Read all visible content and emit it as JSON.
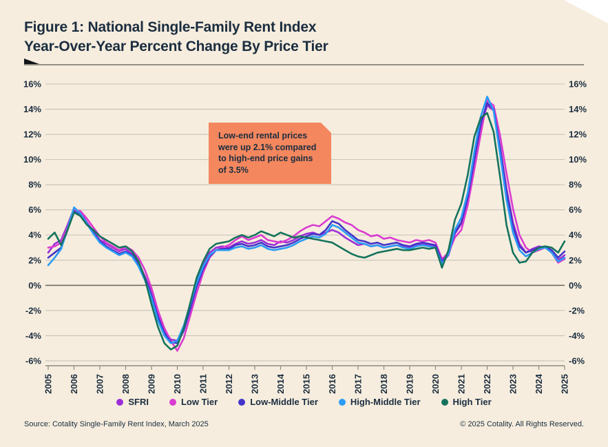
{
  "header": {
    "title_line1": "Figure 1: National Single-Family Rent Index",
    "title_line2": "Year-Over-Year Percent Change By Price Tier"
  },
  "annotation": {
    "text": "Low-end rental prices were up 2.1% compared to high-end price gains of 3.5%"
  },
  "footer": {
    "source": "Source: Cotality Single-Family Rent Index, March 2025",
    "copyright": "© 2025 Cotality. All Rights Reserved."
  },
  "colors": {
    "background": "#f6edde",
    "text_navy": "#1b2d3f",
    "annotation_bg": "#f4875e",
    "gridline": "#c6c2b8",
    "zero_line": "#6f6e66",
    "axis": "#8f8b80"
  },
  "chart_data": {
    "type": "line",
    "title": "National Single-Family Rent Index Year-Over-Year Percent Change By Price Tier",
    "xlabel": "",
    "ylabel": "Year-over-year percent change",
    "y_unit": "%",
    "ylim": [
      -6,
      16
    ],
    "y_ticks": [
      16,
      14,
      12,
      10,
      8,
      6,
      4,
      2,
      0,
      -2,
      -4,
      -6
    ],
    "x_ticks": [
      2005,
      2006,
      2007,
      2008,
      2009,
      2010,
      2011,
      2012,
      2013,
      2014,
      2015,
      2016,
      2017,
      2018,
      2019,
      2020,
      2021,
      2022,
      2023,
      2024,
      2025
    ],
    "x_start": 2005,
    "x_step": 0.25,
    "grid": "horizontal",
    "legend_position": "bottom",
    "series": [
      {
        "name": "SFRI",
        "color": "#9b2fd6",
        "values": [
          2.6,
          3.3,
          3.6,
          4.8,
          6.1,
          5.8,
          5.0,
          4.3,
          3.6,
          3.3,
          3.0,
          2.7,
          2.9,
          2.5,
          1.8,
          0.7,
          -0.5,
          -2.2,
          -3.6,
          -4.3,
          -4.4,
          -3.3,
          -1.6,
          0.3,
          1.6,
          2.6,
          3.0,
          3.1,
          3.0,
          3.3,
          3.5,
          3.3,
          3.4,
          3.6,
          3.3,
          3.2,
          3.5,
          3.4,
          3.6,
          3.9,
          4.1,
          4.2,
          4.0,
          4.2,
          4.4,
          4.2,
          3.8,
          3.5,
          3.2,
          3.3,
          3.1,
          3.2,
          3.0,
          3.1,
          3.2,
          3.1,
          3.0,
          3.2,
          3.3,
          3.2,
          3.1,
          1.8,
          2.4,
          4.1,
          4.9,
          6.8,
          9.8,
          12.6,
          14.3,
          13.9,
          11.0,
          7.7,
          5.0,
          3.3,
          2.6,
          2.9,
          3.1,
          3.0,
          2.7,
          2.0,
          2.4
        ]
      },
      {
        "name": "Low Tier",
        "color": "#da3bd1",
        "values": [
          3.0,
          3.1,
          3.4,
          4.6,
          6.0,
          5.9,
          5.3,
          4.6,
          3.9,
          3.4,
          3.1,
          2.8,
          3.1,
          2.8,
          2.2,
          1.2,
          -0.2,
          -2.0,
          -3.4,
          -4.4,
          -5.2,
          -4.2,
          -2.4,
          -0.6,
          1.0,
          2.2,
          2.8,
          3.0,
          3.2,
          3.6,
          3.9,
          3.6,
          3.8,
          4.0,
          3.6,
          3.5,
          3.4,
          3.6,
          3.9,
          4.3,
          4.6,
          4.8,
          4.7,
          5.1,
          5.5,
          5.3,
          5.0,
          4.8,
          4.4,
          4.2,
          3.9,
          4.0,
          3.7,
          3.8,
          3.6,
          3.5,
          3.4,
          3.6,
          3.5,
          3.6,
          3.4,
          2.1,
          2.6,
          3.8,
          4.4,
          6.4,
          9.2,
          12.0,
          14.7,
          14.3,
          11.9,
          8.9,
          6.1,
          4.0,
          3.0,
          2.6,
          2.8,
          3.0,
          2.6,
          1.8,
          2.1
        ]
      },
      {
        "name": "Low-Middle Tier",
        "color": "#4434c8",
        "values": [
          2.2,
          2.6,
          3.0,
          4.4,
          5.9,
          5.6,
          4.9,
          4.2,
          3.5,
          3.1,
          2.8,
          2.5,
          2.7,
          2.4,
          1.7,
          0.6,
          -0.8,
          -2.5,
          -3.8,
          -4.5,
          -4.6,
          -3.6,
          -1.9,
          -0.1,
          1.3,
          2.3,
          2.8,
          2.9,
          2.9,
          3.2,
          3.3,
          3.1,
          3.2,
          3.4,
          3.1,
          3.0,
          3.1,
          3.2,
          3.4,
          3.7,
          3.9,
          4.1,
          4.0,
          4.4,
          5.1,
          4.9,
          4.4,
          4.0,
          3.6,
          3.5,
          3.3,
          3.4,
          3.2,
          3.3,
          3.4,
          3.2,
          3.1,
          3.3,
          3.4,
          3.3,
          3.2,
          1.9,
          2.5,
          4.2,
          5.0,
          7.0,
          10.0,
          12.8,
          14.5,
          14.0,
          10.9,
          7.4,
          4.7,
          3.1,
          2.6,
          2.8,
          3.0,
          3.1,
          2.8,
          2.2,
          2.7
        ]
      },
      {
        "name": "High-Middle Tier",
        "color": "#2a9cf4",
        "values": [
          1.6,
          2.2,
          2.9,
          4.5,
          6.2,
          5.7,
          4.9,
          4.1,
          3.4,
          3.0,
          2.7,
          2.4,
          2.6,
          2.3,
          1.5,
          0.4,
          -1.0,
          -2.8,
          -4.0,
          -4.6,
          -4.4,
          -3.2,
          -1.5,
          0.2,
          1.5,
          2.4,
          2.8,
          2.8,
          2.8,
          3.0,
          3.1,
          2.9,
          3.0,
          3.2,
          2.9,
          2.8,
          2.9,
          3.0,
          3.2,
          3.5,
          3.7,
          3.9,
          3.8,
          4.1,
          4.8,
          4.6,
          4.2,
          3.8,
          3.4,
          3.3,
          3.1,
          3.2,
          3.0,
          3.1,
          3.2,
          3.0,
          2.9,
          3.1,
          3.2,
          3.1,
          3.0,
          1.7,
          2.5,
          4.4,
          5.4,
          7.4,
          10.6,
          13.4,
          15.0,
          13.9,
          10.4,
          6.8,
          4.2,
          2.8,
          2.3,
          2.6,
          2.9,
          3.0,
          2.6,
          1.9,
          2.2
        ]
      },
      {
        "name": "High Tier",
        "color": "#15735c",
        "values": [
          3.7,
          4.2,
          3.2,
          4.4,
          5.8,
          5.5,
          4.8,
          4.4,
          3.9,
          3.6,
          3.3,
          3.0,
          3.1,
          2.7,
          1.9,
          0.5,
          -1.5,
          -3.3,
          -4.6,
          -5.1,
          -4.8,
          -3.4,
          -1.4,
          0.6,
          1.9,
          2.9,
          3.3,
          3.4,
          3.5,
          3.8,
          4.0,
          3.8,
          4.0,
          4.3,
          4.1,
          3.9,
          4.2,
          4.0,
          3.8,
          3.9,
          3.8,
          3.7,
          3.6,
          3.5,
          3.4,
          3.1,
          2.8,
          2.5,
          2.3,
          2.2,
          2.4,
          2.6,
          2.7,
          2.8,
          2.9,
          2.8,
          2.8,
          2.9,
          3.0,
          2.9,
          3.0,
          1.4,
          2.8,
          5.2,
          6.5,
          8.8,
          11.8,
          13.3,
          13.7,
          12.2,
          8.6,
          4.8,
          2.6,
          1.8,
          1.9,
          2.6,
          3.0,
          3.1,
          3.0,
          2.6,
          3.5
        ]
      }
    ]
  }
}
